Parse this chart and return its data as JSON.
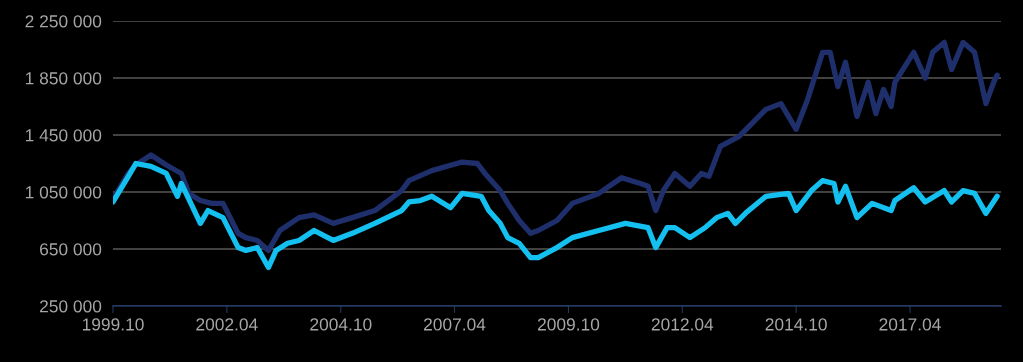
{
  "chart_data": {
    "type": "line",
    "grid": "y",
    "marker": "none",
    "line_style": "solid",
    "xlim": [
      "1999-10",
      "2019-04"
    ],
    "xticks": [
      {
        "value": "1999-10",
        "label": "1999.10"
      },
      {
        "value": "2002-04",
        "label": "2002.04"
      },
      {
        "value": "2004-10",
        "label": "2004.10"
      },
      {
        "value": "2007-04",
        "label": "2007.04"
      },
      {
        "value": "2009-10",
        "label": "2009.10"
      },
      {
        "value": "2012-04",
        "label": "2012.04"
      },
      {
        "value": "2014-10",
        "label": "2014.10"
      },
      {
        "value": "2017-04",
        "label": "2017.04"
      }
    ],
    "ylim": [
      250000,
      2250000
    ],
    "yticks": [
      {
        "value": 250000,
        "label": "250 000"
      },
      {
        "value": 650000,
        "label": "650 000"
      },
      {
        "value": 1050000,
        "label": "1 050 000"
      },
      {
        "value": 1450000,
        "label": "1 450 000"
      },
      {
        "value": 1850000,
        "label": "1 850 000"
      },
      {
        "value": 2250000,
        "label": "2 250 000"
      }
    ],
    "series": [
      {
        "color": "#1f2f6b",
        "x": [
          "1999-10",
          "2000-02",
          "2000-04",
          "2000-08",
          "2000-12",
          "2001-04",
          "2001-06",
          "2001-09",
          "2001-12",
          "2002-03",
          "2002-07",
          "2002-09",
          "2002-12",
          "2003-03",
          "2003-06",
          "2003-11",
          "2004-03",
          "2004-08",
          "2005-01",
          "2005-07",
          "2006-02",
          "2006-04",
          "2006-10",
          "2007-06",
          "2007-10",
          "2007-12",
          "2008-04",
          "2008-06",
          "2008-09",
          "2008-12",
          "2009-02",
          "2009-07",
          "2009-11",
          "2010-06",
          "2010-12",
          "2011-05",
          "2011-07",
          "2011-09",
          "2011-11",
          "2012-02",
          "2012-06",
          "2012-09",
          "2012-11",
          "2013-01",
          "2013-02",
          "2013-07",
          "2014-02",
          "2014-06",
          "2014-10",
          "2015-01",
          "2015-05",
          "2015-07",
          "2015-09",
          "2015-11",
          "2016-02",
          "2016-05",
          "2016-07",
          "2016-09",
          "2016-11",
          "2016-12",
          "2017-05",
          "2017-08",
          "2017-10",
          "2018-01",
          "2018-03",
          "2018-06",
          "2018-09",
          "2018-12",
          "2019-02",
          "2019-03"
        ],
        "values": [
          1000000,
          1180000,
          1240000,
          1310000,
          1240000,
          1180000,
          1040000,
          990000,
          970000,
          970000,
          760000,
          730000,
          710000,
          640000,
          780000,
          870000,
          890000,
          830000,
          870000,
          920000,
          1060000,
          1130000,
          1200000,
          1260000,
          1250000,
          1180000,
          1060000,
          970000,
          850000,
          760000,
          780000,
          850000,
          970000,
          1040000,
          1150000,
          1110000,
          1090000,
          920000,
          1060000,
          1180000,
          1090000,
          1180000,
          1160000,
          1300000,
          1370000,
          1440000,
          1630000,
          1670000,
          1490000,
          1700000,
          2030000,
          2030000,
          1790000,
          1960000,
          1580000,
          1820000,
          1600000,
          1770000,
          1650000,
          1820000,
          2030000,
          1850000,
          2030000,
          2100000,
          1910000,
          2100000,
          2030000,
          1670000,
          1820000,
          1870000
        ]
      },
      {
        "color": "#14c0f0",
        "x": [
          "1999-10",
          "2000-02",
          "2000-04",
          "2000-08",
          "2000-12",
          "2001-03",
          "2001-04",
          "2001-09",
          "2001-11",
          "2002-03",
          "2002-07",
          "2002-09",
          "2002-12",
          "2003-03",
          "2003-05",
          "2003-08",
          "2003-11",
          "2004-03",
          "2004-08",
          "2005-01",
          "2005-07",
          "2006-02",
          "2006-04",
          "2006-07",
          "2006-10",
          "2007-03",
          "2007-06",
          "2007-11",
          "2008-01",
          "2008-04",
          "2008-06",
          "2008-09",
          "2008-12",
          "2009-02",
          "2009-07",
          "2009-11",
          "2010-06",
          "2011-01",
          "2011-07",
          "2011-09",
          "2011-12",
          "2012-02",
          "2012-06",
          "2012-10",
          "2013-01",
          "2013-04",
          "2013-06",
          "2013-09",
          "2014-02",
          "2014-08",
          "2014-10",
          "2015-02",
          "2015-05",
          "2015-08",
          "2015-09",
          "2015-11",
          "2016-02",
          "2016-06",
          "2016-11",
          "2016-12",
          "2017-05",
          "2017-08",
          "2018-01",
          "2018-03",
          "2018-06",
          "2018-09",
          "2018-12",
          "2019-03"
        ],
        "values": [
          980000,
          1160000,
          1250000,
          1230000,
          1180000,
          1020000,
          1110000,
          830000,
          920000,
          870000,
          660000,
          640000,
          660000,
          520000,
          640000,
          690000,
          710000,
          780000,
          710000,
          760000,
          830000,
          920000,
          980000,
          990000,
          1020000,
          940000,
          1040000,
          1020000,
          920000,
          830000,
          730000,
          690000,
          590000,
          590000,
          660000,
          730000,
          780000,
          830000,
          800000,
          660000,
          800000,
          800000,
          730000,
          800000,
          870000,
          900000,
          830000,
          910000,
          1020000,
          1040000,
          920000,
          1060000,
          1130000,
          1110000,
          980000,
          1090000,
          870000,
          970000,
          920000,
          990000,
          1080000,
          980000,
          1060000,
          980000,
          1060000,
          1040000,
          900000,
          1020000
        ]
      }
    ]
  }
}
